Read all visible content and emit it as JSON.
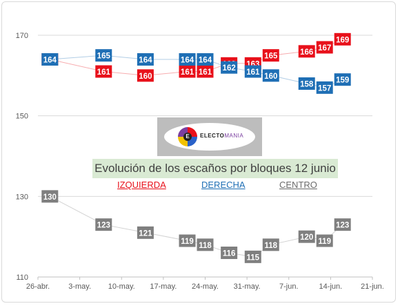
{
  "chart_data": {
    "type": "line",
    "title": "Evolución de los escaños por bloques 12 junio",
    "legend": [
      "IZQUIERDA",
      "DERECHA",
      "CENTRO"
    ],
    "legend_placement": "center",
    "x_ticks": [
      "26-abr.",
      "3-may.",
      "10-may.",
      "17-may.",
      "24-may.",
      "31-may.",
      "7-jun.",
      "14-jun.",
      "21-jun."
    ],
    "y_ticks": [
      110,
      130,
      150,
      170
    ],
    "ylim": [
      110,
      170
    ],
    "xlim": [
      "2016-04-26",
      "2016-06-21"
    ],
    "grid": true,
    "colors": {
      "izquierda": "#e8111b",
      "derecha": "#1f6fb5",
      "centro": "#7f7f7f"
    },
    "series": [
      {
        "name": "IZQUIERDA",
        "points": [
          {
            "date": "2016-04-28",
            "value": 164
          },
          {
            "date": "2016-05-07",
            "value": 161
          },
          {
            "date": "2016-05-14",
            "value": 160
          },
          {
            "date": "2016-05-21",
            "value": 161
          },
          {
            "date": "2016-05-24",
            "value": 161
          },
          {
            "date": "2016-05-28",
            "value": 163
          },
          {
            "date": "2016-06-01",
            "value": 163
          },
          {
            "date": "2016-06-04",
            "value": 165
          },
          {
            "date": "2016-06-10",
            "value": 166
          },
          {
            "date": "2016-06-13",
            "value": 167
          },
          {
            "date": "2016-06-16",
            "value": 169
          }
        ]
      },
      {
        "name": "DERECHA",
        "points": [
          {
            "date": "2016-04-28",
            "value": 164
          },
          {
            "date": "2016-05-07",
            "value": 165
          },
          {
            "date": "2016-05-14",
            "value": 164
          },
          {
            "date": "2016-05-21",
            "value": 164
          },
          {
            "date": "2016-05-24",
            "value": 164
          },
          {
            "date": "2016-05-28",
            "value": 162
          },
          {
            "date": "2016-06-01",
            "value": 161
          },
          {
            "date": "2016-06-04",
            "value": 160
          },
          {
            "date": "2016-06-10",
            "value": 158
          },
          {
            "date": "2016-06-13",
            "value": 157
          },
          {
            "date": "2016-06-16",
            "value": 159
          }
        ]
      },
      {
        "name": "CENTRO",
        "points": [
          {
            "date": "2016-04-28",
            "value": 130
          },
          {
            "date": "2016-05-07",
            "value": 123
          },
          {
            "date": "2016-05-14",
            "value": 121
          },
          {
            "date": "2016-05-21",
            "value": 119
          },
          {
            "date": "2016-05-24",
            "value": 118
          },
          {
            "date": "2016-05-28",
            "value": 116
          },
          {
            "date": "2016-06-01",
            "value": 115
          },
          {
            "date": "2016-06-04",
            "value": 118
          },
          {
            "date": "2016-06-10",
            "value": 120
          },
          {
            "date": "2016-06-13",
            "value": 119
          },
          {
            "date": "2016-06-16",
            "value": 123
          }
        ]
      }
    ]
  },
  "logo": {
    "brand_left": "ELECTO",
    "brand_right": "MANIA",
    "mark": "E"
  }
}
